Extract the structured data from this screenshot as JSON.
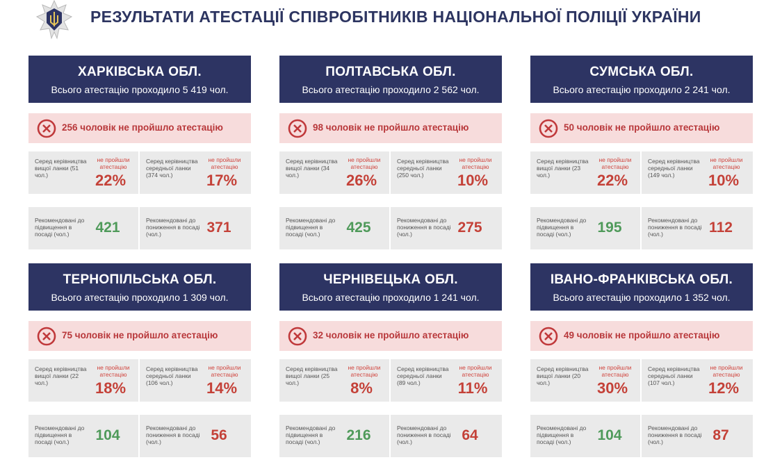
{
  "title": "РЕЗУЛЬТАТИ АТЕСТАЦІЇ СПІВРОБІТНИКІВ НАЦІОНАЛЬНОЇ ПОЛІЦІЇ УКРАЇНИ",
  "colors": {
    "header_bg": "#2d3463",
    "fail_bg": "#f7dcdc",
    "fail_text": "#b8373a",
    "stat_bg": "#eaeaea",
    "up": "#4f9a5a",
    "down": "#c44138"
  },
  "icons": {
    "emblem": "police-emblem-icon",
    "fail": "x-circle-icon"
  },
  "labels": {
    "top_mgmt": "Серед керівництва вищої",
    "mid_mgmt": "Серед керівництва середньої",
    "not_passed": "не пройшли атестацію",
    "promote": "Рекомендовані до підвищення в посаді (чол.)",
    "demote": "Рекомендовані до пониження в посаді (чол.)"
  },
  "regions": [
    {
      "name": "ХАРКІВСЬКА ОБЛ.",
      "total": "Всього атестацію проходило 5 419 чол.",
      "failed": "256 чоловік не пройшло атестацію",
      "top_lab": "Серед керівництва вищої ланки (51 чол.)",
      "top_pct": "22%",
      "mid_lab": "Серед керівництва середньої ланки (374 чол.)",
      "mid_pct": "17%",
      "promote": "421",
      "demote": "371"
    },
    {
      "name": "ПОЛТАВСЬКА ОБЛ.",
      "total": "Всього атестацію проходило 2 562 чол.",
      "failed": "98 чоловік не пройшло атестацію",
      "top_lab": "Серед керівництва вищої ланки (34 чол.)",
      "top_pct": "26%",
      "mid_lab": "Серед керівництва середньої ланки (250 чол.)",
      "mid_pct": "10%",
      "promote": "425",
      "demote": "275"
    },
    {
      "name": "СУМСЬКА ОБЛ.",
      "total": "Всього атестацію проходило 2 241 чол.",
      "failed": "50 чоловік не пройшло атестацію",
      "top_lab": "Серед керівництва вищої ланки (23 чол.)",
      "top_pct": "22%",
      "mid_lab": "Серед керівництва середньої ланки (149 чол.)",
      "mid_pct": "10%",
      "promote": "195",
      "demote": "112"
    },
    {
      "name": "ТЕРНОПІЛЬСЬКА ОБЛ.",
      "total": "Всього атестацію проходило 1 309 чол.",
      "failed": "75 чоловік не пройшло атестацію",
      "top_lab": "Серед керівництва вищої ланки (22 чол.)",
      "top_pct": "18%",
      "mid_lab": "Серед керівництва середньої ланки (106 чол.)",
      "mid_pct": "14%",
      "promote": "104",
      "demote": "56"
    },
    {
      "name": "ЧЕРНІВЕЦЬКА ОБЛ.",
      "total": "Всього атестацію проходило 1 241 чол.",
      "failed": "32 чоловік не пройшло атестацію",
      "top_lab": "Серед керівництва вищої ланки (25 чол.)",
      "top_pct": "8%",
      "mid_lab": "Серед керівництва середньої ланки (89 чол.)",
      "mid_pct": "11%",
      "promote": "216",
      "demote": "64"
    },
    {
      "name": "ІВАНО-ФРАНКІВСЬКА ОБЛ.",
      "total": "Всього атестацію проходило 1 352 чол.",
      "failed": "49 чоловік не пройшло атестацію",
      "top_lab": "Серед керівництва вищої ланки (20 чол.)",
      "top_pct": "30%",
      "mid_lab": "Серед керівництва середньої ланки (107 чол.)",
      "mid_pct": "12%",
      "promote": "104",
      "demote": "87"
    }
  ]
}
